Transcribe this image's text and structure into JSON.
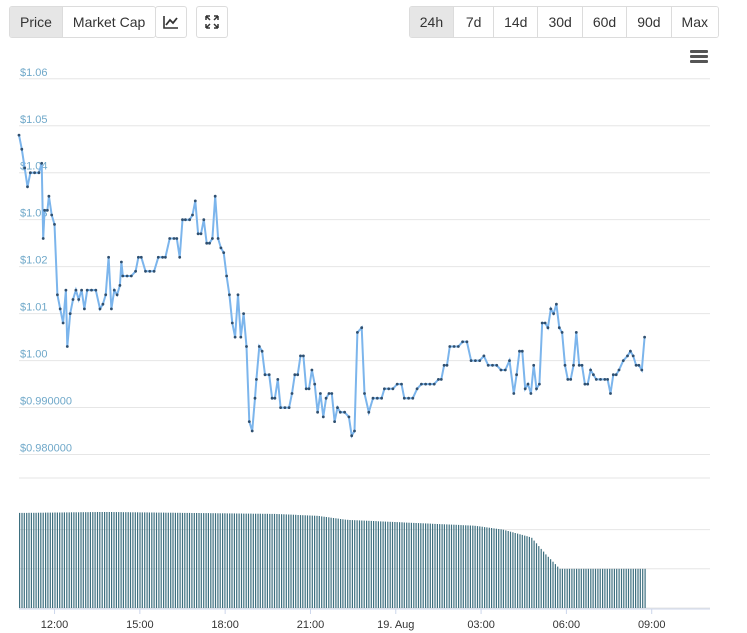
{
  "toolbar": {
    "type_buttons": [
      {
        "label": "Price",
        "active": true
      },
      {
        "label": "Market Cap",
        "active": false
      }
    ],
    "icons": [
      "line-chart-icon",
      "fullscreen-icon"
    ],
    "range_buttons": [
      {
        "label": "24h",
        "active": true
      },
      {
        "label": "7d",
        "active": false
      },
      {
        "label": "14d",
        "active": false
      },
      {
        "label": "30d",
        "active": false
      },
      {
        "label": "60d",
        "active": false
      },
      {
        "label": "90d",
        "active": false
      },
      {
        "label": "Max",
        "active": false
      }
    ],
    "menu_icon": "hamburger-menu-icon"
  },
  "chart_data": {
    "type": "line",
    "colors": {
      "line": "#7cb5ec",
      "point": "#2f4f6f",
      "volume": "#3d6f7f",
      "grid": "#e6e6e6",
      "y_tick": "#6fa8c9"
    },
    "y_ticks": [
      "$1.06",
      "$1.05",
      "$1.04",
      "$1.03",
      "$1.02",
      "$1.01",
      "$1.00",
      "$0.990000",
      "$0.980000"
    ],
    "y_tick_values": [
      1.06,
      1.05,
      1.04,
      1.03,
      1.02,
      1.01,
      1.0,
      0.99,
      0.98
    ],
    "ylim": [
      0.975,
      1.064
    ],
    "x_ticks": [
      "12:00",
      "15:00",
      "18:00",
      "21:00",
      "19. Aug",
      "03:00",
      "06:00",
      "09:00"
    ],
    "x_tick_hours": [
      1.25,
      4.25,
      7.25,
      10.25,
      13.25,
      16.25,
      19.25,
      22.25
    ],
    "xlim_hours": [
      0,
      24.3
    ],
    "grid": true,
    "price": [
      [
        0.0,
        1.048
      ],
      [
        0.1,
        1.045
      ],
      [
        0.2,
        1.041
      ],
      [
        0.3,
        1.037
      ],
      [
        0.4,
        1.04
      ],
      [
        0.55,
        1.04
      ],
      [
        0.7,
        1.04
      ],
      [
        0.8,
        1.042
      ],
      [
        0.85,
        1.026
      ],
      [
        0.9,
        1.032
      ],
      [
        1.0,
        1.032
      ],
      [
        1.05,
        1.035
      ],
      [
        1.15,
        1.031
      ],
      [
        1.25,
        1.029
      ],
      [
        1.35,
        1.014
      ],
      [
        1.45,
        1.011
      ],
      [
        1.55,
        1.008
      ],
      [
        1.65,
        1.015
      ],
      [
        1.7,
        1.003
      ],
      [
        1.8,
        1.01
      ],
      [
        1.9,
        1.013
      ],
      [
        2.0,
        1.015
      ],
      [
        2.1,
        1.013
      ],
      [
        2.2,
        1.015
      ],
      [
        2.3,
        1.011
      ],
      [
        2.4,
        1.015
      ],
      [
        2.55,
        1.015
      ],
      [
        2.7,
        1.015
      ],
      [
        2.85,
        1.011
      ],
      [
        2.95,
        1.012
      ],
      [
        3.05,
        1.014
      ],
      [
        3.15,
        1.022
      ],
      [
        3.25,
        1.011
      ],
      [
        3.35,
        1.015
      ],
      [
        3.45,
        1.014
      ],
      [
        3.55,
        1.016
      ],
      [
        3.6,
        1.021
      ],
      [
        3.65,
        1.018
      ],
      [
        3.8,
        1.018
      ],
      [
        3.95,
        1.018
      ],
      [
        4.1,
        1.019
      ],
      [
        4.2,
        1.022
      ],
      [
        4.3,
        1.022
      ],
      [
        4.45,
        1.019
      ],
      [
        4.6,
        1.019
      ],
      [
        4.75,
        1.019
      ],
      [
        4.9,
        1.022
      ],
      [
        5.05,
        1.022
      ],
      [
        5.15,
        1.022
      ],
      [
        5.3,
        1.026
      ],
      [
        5.45,
        1.026
      ],
      [
        5.55,
        1.026
      ],
      [
        5.65,
        1.022
      ],
      [
        5.75,
        1.03
      ],
      [
        5.85,
        1.03
      ],
      [
        6.0,
        1.03
      ],
      [
        6.1,
        1.031
      ],
      [
        6.2,
        1.034
      ],
      [
        6.3,
        1.027
      ],
      [
        6.4,
        1.027
      ],
      [
        6.5,
        1.03
      ],
      [
        6.6,
        1.025
      ],
      [
        6.7,
        1.025
      ],
      [
        6.8,
        1.026
      ],
      [
        6.9,
        1.035
      ],
      [
        7.0,
        1.026
      ],
      [
        7.1,
        1.024
      ],
      [
        7.2,
        1.023
      ],
      [
        7.3,
        1.018
      ],
      [
        7.4,
        1.014
      ],
      [
        7.5,
        1.008
      ],
      [
        7.6,
        1.005
      ],
      [
        7.7,
        1.014
      ],
      [
        7.8,
        1.005
      ],
      [
        7.9,
        1.01
      ],
      [
        8.0,
        1.003
      ],
      [
        8.1,
        0.987
      ],
      [
        8.2,
        0.985
      ],
      [
        8.3,
        0.992
      ],
      [
        8.35,
        0.996
      ],
      [
        8.45,
        1.003
      ],
      [
        8.55,
        1.002
      ],
      [
        8.65,
        0.997
      ],
      [
        8.8,
        0.997
      ],
      [
        8.9,
        0.992
      ],
      [
        9.0,
        0.992
      ],
      [
        9.1,
        0.996
      ],
      [
        9.2,
        0.99
      ],
      [
        9.35,
        0.99
      ],
      [
        9.5,
        0.99
      ],
      [
        9.6,
        0.993
      ],
      [
        9.7,
        0.997
      ],
      [
        9.8,
        0.997
      ],
      [
        9.9,
        1.001
      ],
      [
        10.0,
        1.001
      ],
      [
        10.1,
        0.994
      ],
      [
        10.2,
        0.994
      ],
      [
        10.3,
        0.998
      ],
      [
        10.4,
        0.995
      ],
      [
        10.5,
        0.989
      ],
      [
        10.6,
        0.993
      ],
      [
        10.7,
        0.988
      ],
      [
        10.8,
        0.992
      ],
      [
        10.9,
        0.993
      ],
      [
        11.0,
        0.993
      ],
      [
        11.1,
        0.987
      ],
      [
        11.2,
        0.99
      ],
      [
        11.3,
        0.989
      ],
      [
        11.45,
        0.989
      ],
      [
        11.6,
        0.988
      ],
      [
        11.7,
        0.984
      ],
      [
        11.8,
        0.985
      ],
      [
        11.9,
        1.006
      ],
      [
        12.05,
        1.007
      ],
      [
        12.15,
        0.993
      ],
      [
        12.3,
        0.989
      ],
      [
        12.45,
        0.992
      ],
      [
        12.6,
        0.992
      ],
      [
        12.75,
        0.992
      ],
      [
        12.85,
        0.994
      ],
      [
        13.0,
        0.994
      ],
      [
        13.15,
        0.994
      ],
      [
        13.3,
        0.995
      ],
      [
        13.45,
        0.995
      ],
      [
        13.55,
        0.992
      ],
      [
        13.7,
        0.992
      ],
      [
        13.85,
        0.992
      ],
      [
        14.0,
        0.994
      ],
      [
        14.15,
        0.995
      ],
      [
        14.3,
        0.995
      ],
      [
        14.45,
        0.995
      ],
      [
        14.6,
        0.995
      ],
      [
        14.75,
        0.996
      ],
      [
        14.85,
        0.996
      ],
      [
        14.95,
        0.999
      ],
      [
        15.05,
        0.999
      ],
      [
        15.15,
        1.003
      ],
      [
        15.3,
        1.003
      ],
      [
        15.45,
        1.003
      ],
      [
        15.6,
        1.004
      ],
      [
        15.75,
        1.004
      ],
      [
        15.9,
        1.0
      ],
      [
        16.05,
        1.0
      ],
      [
        16.2,
        1.0
      ],
      [
        16.35,
        1.001
      ],
      [
        16.5,
        0.999
      ],
      [
        16.65,
        0.999
      ],
      [
        16.8,
        0.999
      ],
      [
        16.95,
        0.998
      ],
      [
        17.1,
        0.998
      ],
      [
        17.25,
        1.0
      ],
      [
        17.4,
        0.993
      ],
      [
        17.5,
        0.997
      ],
      [
        17.6,
        1.002
      ],
      [
        17.7,
        1.002
      ],
      [
        17.8,
        0.994
      ],
      [
        17.9,
        0.995
      ],
      [
        18.0,
        0.993
      ],
      [
        18.1,
        0.999
      ],
      [
        18.2,
        0.994
      ],
      [
        18.3,
        0.995
      ],
      [
        18.4,
        1.008
      ],
      [
        18.5,
        1.008
      ],
      [
        18.6,
        1.007
      ],
      [
        18.7,
        1.011
      ],
      [
        18.8,
        1.01
      ],
      [
        18.9,
        1.012
      ],
      [
        19.0,
        1.007
      ],
      [
        19.1,
        1.006
      ],
      [
        19.2,
        0.999
      ],
      [
        19.3,
        0.996
      ],
      [
        19.4,
        0.996
      ],
      [
        19.5,
        0.999
      ],
      [
        19.6,
        1.006
      ],
      [
        19.7,
        0.999
      ],
      [
        19.8,
        0.999
      ],
      [
        19.9,
        0.995
      ],
      [
        20.0,
        0.995
      ],
      [
        20.1,
        0.998
      ],
      [
        20.2,
        0.997
      ],
      [
        20.3,
        0.996
      ],
      [
        20.45,
        0.996
      ],
      [
        20.6,
        0.996
      ],
      [
        20.7,
        0.996
      ],
      [
        20.8,
        0.993
      ],
      [
        20.9,
        0.997
      ],
      [
        21.0,
        0.997
      ],
      [
        21.1,
        0.998
      ],
      [
        21.25,
        1.0
      ],
      [
        21.4,
        1.001
      ],
      [
        21.5,
        1.002
      ],
      [
        21.6,
        1.001
      ],
      [
        21.7,
        0.999
      ],
      [
        21.8,
        0.999
      ],
      [
        21.9,
        0.998
      ],
      [
        22.0,
        1.005
      ]
    ],
    "volume_levels": [
      [
        0.0,
        0.97
      ],
      [
        3.0,
        0.98
      ],
      [
        6.0,
        0.97
      ],
      [
        9.0,
        0.96
      ],
      [
        10.5,
        0.94
      ],
      [
        11.5,
        0.9
      ],
      [
        13.0,
        0.88
      ],
      [
        14.5,
        0.86
      ],
      [
        16.0,
        0.84
      ],
      [
        17.0,
        0.8
      ],
      [
        18.0,
        0.72
      ],
      [
        18.5,
        0.55
      ],
      [
        19.0,
        0.4
      ],
      [
        22.0,
        0.4
      ]
    ]
  }
}
